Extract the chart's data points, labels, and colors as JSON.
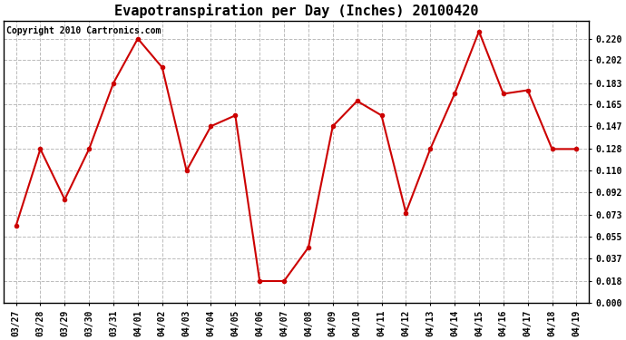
{
  "title": "Evapotranspiration per Day (Inches) 20100420",
  "copyright_text": "Copyright 2010 Cartronics.com",
  "x_labels": [
    "03/27",
    "03/28",
    "03/29",
    "03/30",
    "03/31",
    "04/01",
    "04/02",
    "04/03",
    "04/04",
    "04/05",
    "04/06",
    "04/07",
    "04/08",
    "04/09",
    "04/10",
    "04/11",
    "04/12",
    "04/13",
    "04/14",
    "04/15",
    "04/16",
    "04/17",
    "04/18",
    "04/19"
  ],
  "y_values": [
    0.064,
    0.128,
    0.086,
    0.128,
    0.183,
    0.22,
    0.196,
    0.11,
    0.147,
    0.156,
    0.018,
    0.018,
    0.046,
    0.147,
    0.168,
    0.156,
    0.075,
    0.128,
    0.174,
    0.226,
    0.174,
    0.177,
    0.128,
    0.128
  ],
  "line_color": "#cc0000",
  "marker": "o",
  "marker_size": 3,
  "linewidth": 1.5,
  "ylim": [
    0.0,
    0.235
  ],
  "yticks": [
    0.0,
    0.018,
    0.037,
    0.055,
    0.073,
    0.092,
    0.11,
    0.128,
    0.147,
    0.165,
    0.183,
    0.202,
    0.22
  ],
  "bg_color": "#ffffff",
  "plot_bg_color": "#ffffff",
  "grid_color": "#bbbbbb",
  "title_fontsize": 11,
  "tick_fontsize": 7,
  "copyright_fontsize": 7
}
